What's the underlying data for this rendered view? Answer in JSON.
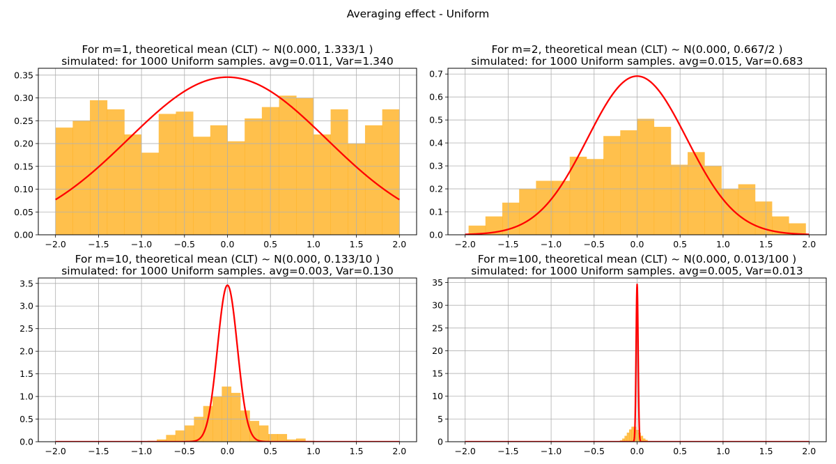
{
  "suptitle": "Averaging effect - Uniform",
  "colors": {
    "histogram": "#FFA500",
    "curve": "#FF0000",
    "grid": "#B0B0B0"
  },
  "chart_data": [
    {
      "type": "bar",
      "title": "For m=1, theoretical mean (CLT) ~ N(0.000, 1.333/1 )",
      "subtitle": "simulated: for 1000 Uniform samples. avg=0.011, Var=1.340",
      "xlim": [
        -2.2,
        2.2
      ],
      "ylim": [
        0,
        0.365
      ],
      "grid": true,
      "xticks": [
        -2.0,
        -1.5,
        -1.0,
        -0.5,
        0.0,
        0.5,
        1.0,
        1.5,
        2.0
      ],
      "yticks": [
        0.0,
        0.05,
        0.1,
        0.15,
        0.2,
        0.25,
        0.3,
        0.35
      ],
      "xtick_labels": [
        "−2.0",
        "−1.5",
        "−1.0",
        "−0.5",
        "0.0",
        "0.5",
        "1.0",
        "1.5",
        "2.0"
      ],
      "ytick_labels": [
        "0.00",
        "0.05",
        "0.10",
        "0.15",
        "0.20",
        "0.25",
        "0.30",
        "0.35"
      ],
      "histogram": {
        "bin_start": -2.0,
        "bin_width": 0.2,
        "values": [
          0.235,
          0.25,
          0.295,
          0.275,
          0.22,
          0.18,
          0.265,
          0.27,
          0.215,
          0.24,
          0.205,
          0.255,
          0.28,
          0.305,
          0.3,
          0.22,
          0.275,
          0.2,
          0.24,
          0.275
        ]
      },
      "curve": {
        "name": "N(0.000, 1.333/1)",
        "mean": 0.0,
        "variance": 1.333,
        "x_range": [
          -2.0,
          2.0
        ]
      }
    },
    {
      "type": "bar",
      "title": "For m=2, theoretical mean (CLT) ~ N(0.000, 0.667/2 )",
      "subtitle": "simulated: for 1000 Uniform samples. avg=0.015, Var=0.683",
      "xlim": [
        -2.2,
        2.2
      ],
      "ylim": [
        0,
        0.725
      ],
      "grid": true,
      "xticks": [
        -2.0,
        -1.5,
        -1.0,
        -0.5,
        0.0,
        0.5,
        1.0,
        1.5,
        2.0
      ],
      "yticks": [
        0.0,
        0.1,
        0.2,
        0.3,
        0.4,
        0.5,
        0.6,
        0.7
      ],
      "xtick_labels": [
        "−2.0",
        "−1.5",
        "−1.0",
        "−0.5",
        "0.0",
        "0.5",
        "1.0",
        "1.5",
        "2.0"
      ],
      "ytick_labels": [
        "0.0",
        "0.1",
        "0.2",
        "0.3",
        "0.4",
        "0.5",
        "0.6",
        "0.7"
      ],
      "histogram": {
        "bin_start": -1.96,
        "bin_width": 0.196,
        "values": [
          0.04,
          0.08,
          0.14,
          0.2,
          0.235,
          0.235,
          0.34,
          0.33,
          0.43,
          0.455,
          0.505,
          0.47,
          0.305,
          0.36,
          0.3,
          0.2,
          0.22,
          0.145,
          0.08,
          0.05
        ]
      },
      "curve": {
        "name": "N(0.000, 0.667/2)",
        "mean": 0.0,
        "variance": 0.3335,
        "x_range": [
          -2.0,
          2.0
        ]
      }
    },
    {
      "type": "bar",
      "title": "For m=10, theoretical mean (CLT) ~ N(0.000, 0.133/10 )",
      "subtitle": "simulated: for 1000 Uniform samples. avg=0.003, Var=0.130",
      "xlim": [
        -2.2,
        2.2
      ],
      "ylim": [
        0,
        3.62
      ],
      "grid": true,
      "xticks": [
        -2.0,
        -1.5,
        -1.0,
        -0.5,
        0.0,
        0.5,
        1.0,
        1.5,
        2.0
      ],
      "yticks": [
        0.0,
        0.5,
        1.0,
        1.5,
        2.0,
        2.5,
        3.0,
        3.5
      ],
      "xtick_labels": [
        "−2.0",
        "−1.5",
        "−1.0",
        "−0.5",
        "0.0",
        "0.5",
        "1.0",
        "1.5",
        "2.0"
      ],
      "ytick_labels": [
        "0.0",
        "0.5",
        "1.0",
        "1.5",
        "2.0",
        "2.5",
        "3.0",
        "3.5"
      ],
      "histogram": {
        "bin_start": -0.93,
        "bin_width": 0.108,
        "values": [
          0.02,
          0.05,
          0.15,
          0.25,
          0.36,
          0.55,
          0.79,
          1.0,
          1.22,
          1.08,
          0.69,
          0.46,
          0.36,
          0.17,
          0.17,
          0.05,
          0.07,
          0.02
        ]
      },
      "curve": {
        "name": "N(0.000, 0.133/10)",
        "mean": 0.0,
        "variance": 0.0133,
        "x_range": [
          -2.0,
          2.0
        ]
      }
    },
    {
      "type": "bar",
      "title": "For m=100, theoretical mean (CLT) ~ N(0.000, 0.013/100 )",
      "subtitle": "simulated: for 1000 Uniform samples. avg=0.005, Var=0.013",
      "xlim": [
        -2.2,
        2.2
      ],
      "ylim": [
        0,
        36
      ],
      "grid": true,
      "xticks": [
        -2.0,
        -1.5,
        -1.0,
        -0.5,
        0.0,
        0.5,
        1.0,
        1.5,
        2.0
      ],
      "yticks": [
        0,
        5,
        10,
        15,
        20,
        25,
        30,
        35
      ],
      "xtick_labels": [
        "−2.0",
        "−1.5",
        "−1.0",
        "−0.5",
        "0.0",
        "0.5",
        "1.0",
        "1.5",
        "2.0"
      ],
      "ytick_labels": [
        "0",
        "5",
        "10",
        "15",
        "20",
        "25",
        "30",
        "35"
      ],
      "histogram": {
        "bin_start": -0.2,
        "bin_width": 0.0267,
        "values": [
          0.3,
          0.7,
          1.3,
          2.0,
          2.7,
          3.3,
          3.3,
          2.6,
          2.0,
          1.3,
          0.7,
          0.4,
          0.1,
          0.1,
          0.1
        ]
      },
      "curve": {
        "name": "N(0.000, 0.013/100)",
        "mean": 0.0,
        "variance": 0.000133,
        "x_range": [
          -2.0,
          2.0
        ]
      }
    }
  ]
}
